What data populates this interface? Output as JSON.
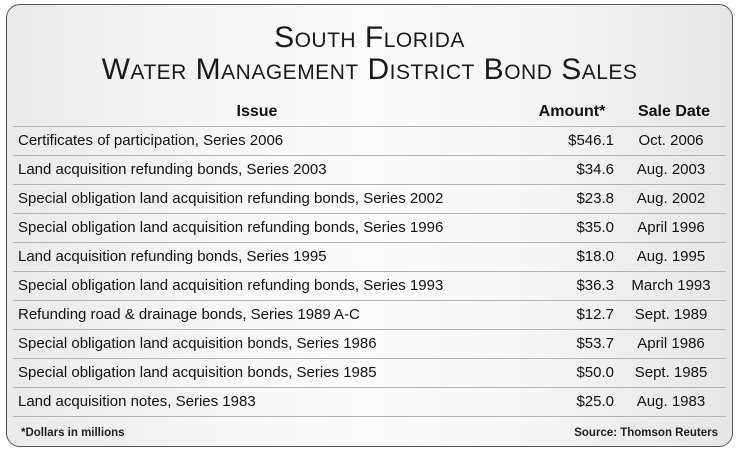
{
  "chart_data": {
    "type": "table",
    "title_line1": "South Florida",
    "title_line2": "Water Management District Bond Sales",
    "columns": [
      "Issue",
      "Amount*",
      "Sale Date"
    ],
    "rows": [
      {
        "issue": "Certificates of participation, Series 2006",
        "amount": "$546.1",
        "date": "Oct. 2006"
      },
      {
        "issue": "Land acquisition refunding bonds, Series 2003",
        "amount": "$34.6",
        "date": "Aug. 2003"
      },
      {
        "issue": "Special obligation land acquisition refunding bonds, Series 2002",
        "amount": "$23.8",
        "date": "Aug. 2002"
      },
      {
        "issue": "Special obligation land acquisition refunding bonds, Series 1996",
        "amount": "$35.0",
        "date": "April 1996"
      },
      {
        "issue": "Land acquisition refunding bonds, Series 1995",
        "amount": "$18.0",
        "date": "Aug. 1995"
      },
      {
        "issue": "Special obligation land acquisition refunding bonds, Series 1993",
        "amount": "$36.3",
        "date": "March 1993"
      },
      {
        "issue": "Refunding road & drainage bonds, Series 1989 A-C",
        "amount": "$12.7",
        "date": "Sept. 1989"
      },
      {
        "issue": "Special obligation land acquisition bonds, Series 1986",
        "amount": "$53.7",
        "date": "April 1986"
      },
      {
        "issue": "Special obligation land acquisition bonds, Series 1985",
        "amount": "$50.0",
        "date": "Sept. 1985"
      },
      {
        "issue": "Land acquisition notes, Series 1983",
        "amount": "$25.0",
        "date": "Aug. 1983"
      }
    ],
    "footnote": "*Dollars in millions",
    "source": "Source: Thomson Reuters"
  }
}
